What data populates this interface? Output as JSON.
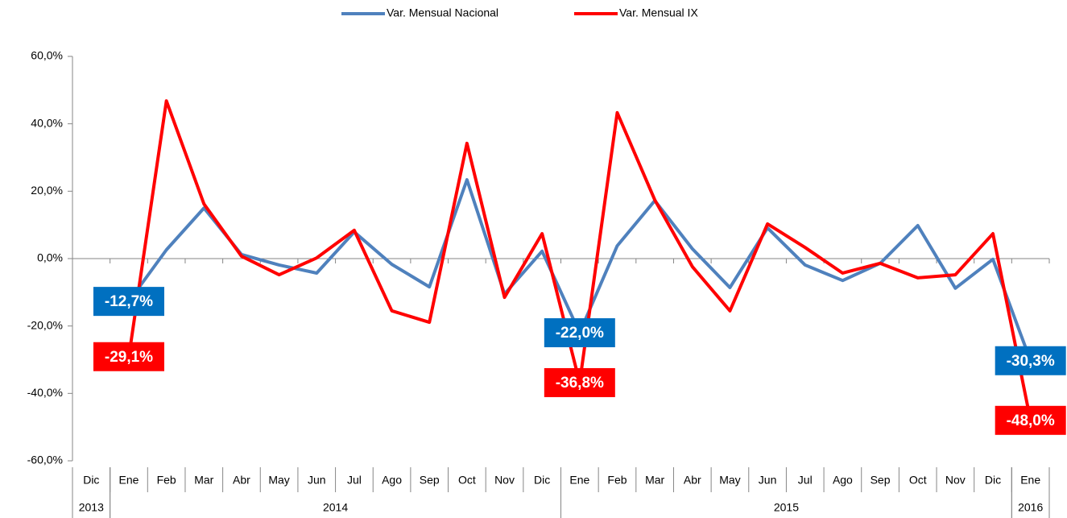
{
  "chart_data": {
    "type": "line",
    "categories": [
      "Dic",
      "Ene",
      "Feb",
      "Mar",
      "Abr",
      "May",
      "Jun",
      "Jul",
      "Ago",
      "Sep",
      "Oct",
      "Nov",
      "Dic",
      "Ene",
      "Feb",
      "Mar",
      "Abr",
      "May",
      "Jun",
      "Jul",
      "Ago",
      "Sep",
      "Oct",
      "Nov",
      "Dic",
      "Ene"
    ],
    "groups": [
      {
        "label": "2013",
        "span": 1
      },
      {
        "label": "2014",
        "span": 12
      },
      {
        "label": "2015",
        "span": 12
      },
      {
        "label": "2016",
        "span": 1
      }
    ],
    "series": [
      {
        "name": "Var. Mensual Nacional",
        "color": "#4f81bd",
        "label_color": "#0070c0",
        "values": [
          null,
          -12.7,
          2.6,
          15.0,
          1.2,
          -1.9,
          -4.3,
          7.9,
          -1.7,
          -8.4,
          23.4,
          -10.5,
          2.2,
          -22.0,
          3.8,
          17.2,
          2.9,
          -8.6,
          9.1,
          -1.9,
          -6.5,
          -1.4,
          9.8,
          -8.8,
          -0.2,
          -30.3
        ],
        "value_labels": [
          null,
          "-12,7%",
          null,
          null,
          null,
          null,
          null,
          null,
          null,
          null,
          null,
          null,
          null,
          "-22,0%",
          null,
          null,
          null,
          null,
          null,
          null,
          null,
          null,
          null,
          null,
          null,
          "-30,3%"
        ]
      },
      {
        "name": "Var. Mensual IX",
        "color": "#ff0000",
        "label_color": "#ff0000",
        "values": [
          null,
          -29.1,
          46.8,
          16.2,
          0.7,
          -4.8,
          0.2,
          8.4,
          -15.5,
          -18.9,
          34.2,
          -11.5,
          7.4,
          -36.8,
          43.3,
          17.4,
          -2.4,
          -15.5,
          10.3,
          3.3,
          -4.3,
          -1.4,
          -5.7,
          -4.8,
          7.4,
          -48.0
        ],
        "value_labels": [
          null,
          "-29,1%",
          null,
          null,
          null,
          null,
          null,
          null,
          null,
          null,
          null,
          null,
          null,
          "-36,8%",
          null,
          null,
          null,
          null,
          null,
          null,
          null,
          null,
          null,
          null,
          null,
          "-48,0%"
        ]
      }
    ],
    "ylim": [
      -60,
      60
    ],
    "yticks": [
      {
        "value": -60,
        "label": "-60,0%"
      },
      {
        "value": -40,
        "label": "-40,0%"
      },
      {
        "value": -20,
        "label": "-20,0%"
      },
      {
        "value": 0,
        "label": "0,0%"
      },
      {
        "value": 20,
        "label": "20,0%"
      },
      {
        "value": 40,
        "label": "40,0%"
      },
      {
        "value": 60,
        "label": "60,0%"
      }
    ],
    "legend": "top"
  }
}
